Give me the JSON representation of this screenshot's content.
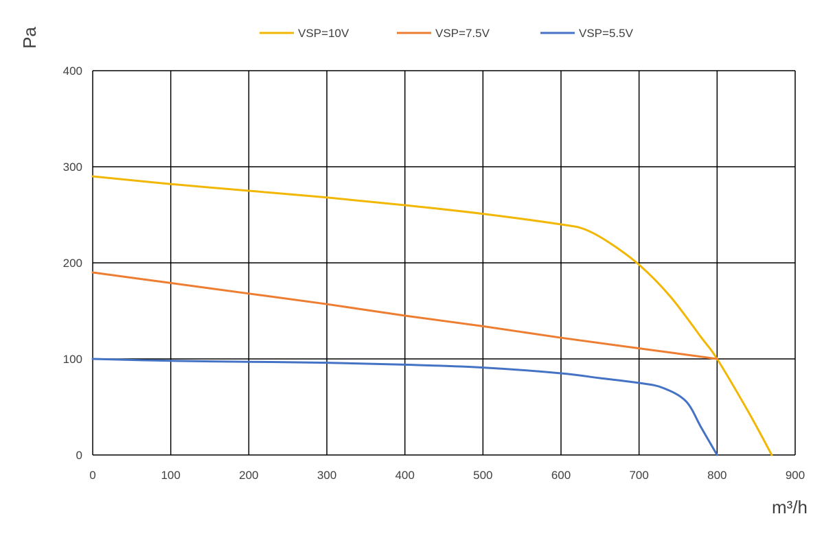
{
  "chart_data": {
    "type": "line",
    "title": "",
    "xlabel": "m³/h",
    "ylabel": "Pa",
    "xlim": [
      0,
      900
    ],
    "ylim": [
      0,
      400
    ],
    "x_ticks": [
      0,
      100,
      200,
      300,
      400,
      500,
      600,
      700,
      800,
      900
    ],
    "y_ticks": [
      0,
      100,
      200,
      300,
      400
    ],
    "grid": true,
    "legend_position": "top",
    "series": [
      {
        "name": "VSP=10V",
        "color": "#F2B705",
        "points": [
          [
            0,
            290
          ],
          [
            100,
            282
          ],
          [
            200,
            275
          ],
          [
            300,
            268
          ],
          [
            400,
            260
          ],
          [
            500,
            251
          ],
          [
            600,
            240
          ],
          [
            630,
            235
          ],
          [
            660,
            222
          ],
          [
            700,
            198
          ],
          [
            740,
            165
          ],
          [
            780,
            122
          ],
          [
            800,
            100
          ],
          [
            840,
            45
          ],
          [
            870,
            0
          ]
        ]
      },
      {
        "name": "VSP=7.5V",
        "color": "#ED7D31",
        "points": [
          [
            0,
            190
          ],
          [
            100,
            179
          ],
          [
            200,
            168
          ],
          [
            300,
            157
          ],
          [
            400,
            145
          ],
          [
            500,
            134
          ],
          [
            600,
            122
          ],
          [
            700,
            111
          ],
          [
            800,
            100
          ]
        ]
      },
      {
        "name": "VSP=5.5V",
        "color": "#4472C4",
        "points": [
          [
            0,
            100
          ],
          [
            100,
            98
          ],
          [
            200,
            97
          ],
          [
            300,
            96
          ],
          [
            400,
            94
          ],
          [
            500,
            91
          ],
          [
            600,
            85
          ],
          [
            650,
            80
          ],
          [
            700,
            75
          ],
          [
            730,
            70
          ],
          [
            760,
            56
          ],
          [
            780,
            28
          ],
          [
            800,
            0
          ]
        ]
      }
    ]
  }
}
